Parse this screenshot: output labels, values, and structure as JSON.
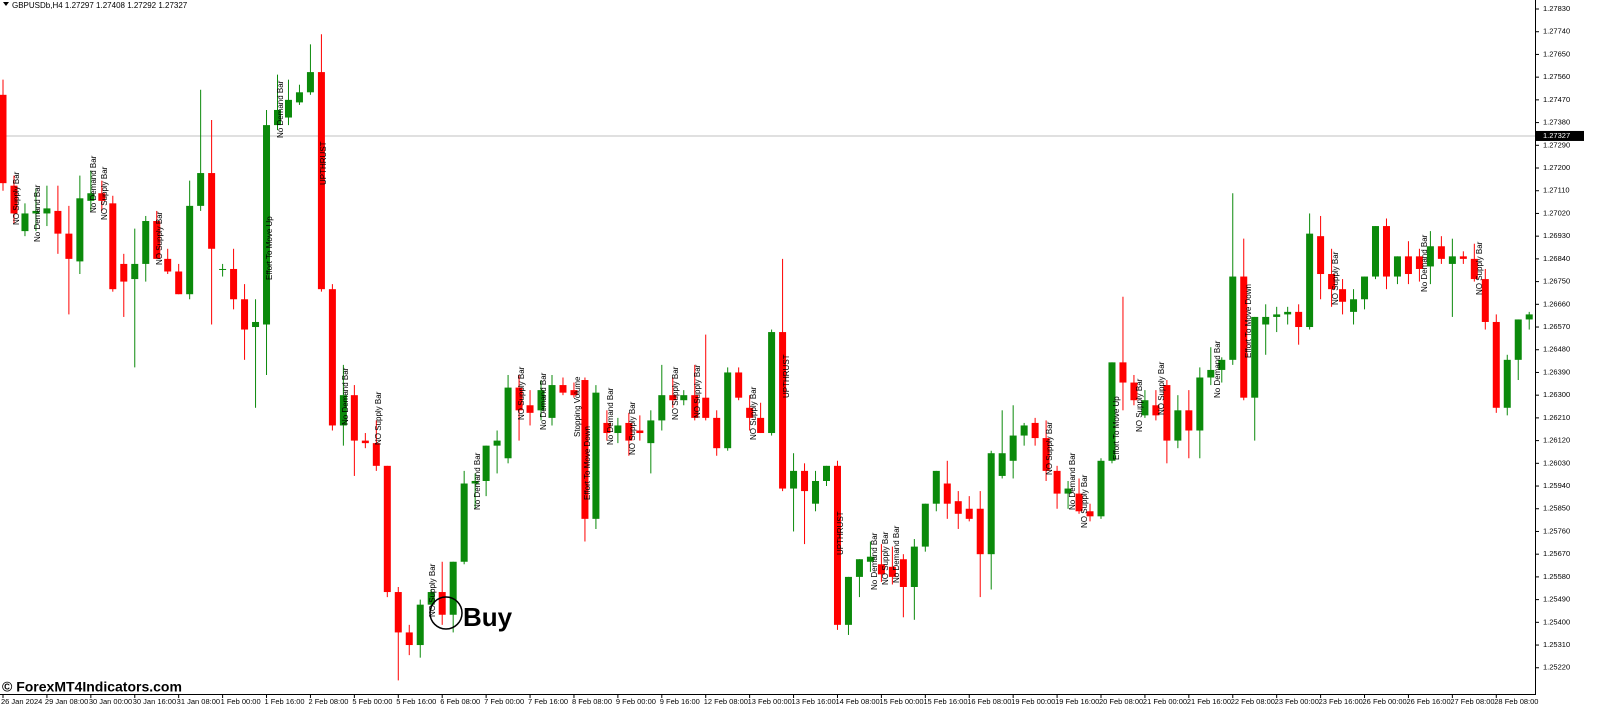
{
  "chart_data": {
    "type": "candlestick",
    "title": "GBPUSDb,H4  1.27297 1.27408 1.27292 1.27327",
    "up_color": "#0b8a0b",
    "down_color": "#ff0000",
    "categories": [
      "26 Jan 2024",
      null,
      null,
      null,
      "29 Jan 08:00",
      null,
      null,
      null,
      "30 Jan 00:00",
      null,
      null,
      null,
      "30 Jan 16:00",
      null,
      null,
      null,
      "31 Jan 08:00",
      null,
      null,
      null,
      "1 Feb 00:00",
      null,
      null,
      null,
      "1 Feb 16:00",
      null,
      null,
      null,
      "2 Feb 08:00",
      null,
      null,
      null,
      "5 Feb 00:00",
      null,
      null,
      null,
      "5 Feb 16:00",
      null,
      null,
      null,
      "6 Feb 08:00",
      null,
      null,
      null,
      "7 Feb 00:00",
      null,
      null,
      null,
      "7 Feb 16:00",
      null,
      null,
      null,
      "8 Feb 08:00",
      null,
      null,
      null,
      "9 Feb 00:00",
      null,
      null,
      null,
      "9 Feb 16:00",
      null,
      null,
      null,
      "12 Feb 08:00",
      null,
      null,
      null,
      "13 Feb 00:00",
      null,
      null,
      null,
      "13 Feb 16:00",
      null,
      null,
      null,
      "14 Feb 08:00",
      null,
      null,
      null,
      "15 Feb 00:00",
      null,
      null,
      null,
      "15 Feb 16:00",
      null,
      null,
      null,
      "16 Feb 08:00",
      null,
      null,
      null,
      "19 Feb 00:00",
      null,
      null,
      null,
      "19 Feb 16:00",
      null,
      null,
      null,
      "20 Feb 08:00",
      null,
      null,
      null,
      "21 Feb 00:00",
      null,
      null,
      null,
      "21 Feb 16:00",
      null,
      null,
      null,
      "22 Feb 08:00",
      null,
      null,
      null,
      "23 Feb 00:00",
      null,
      null,
      null,
      "23 Feb 16:00",
      null,
      null,
      null,
      "26 Feb 00:00",
      null,
      null,
      null,
      "26 Feb 16:00",
      null,
      null,
      null,
      "27 Feb 08:00",
      null,
      null,
      null,
      "28 Feb 08:00",
      null,
      null,
      null
    ],
    "open": [
      1.2749,
      1.2713,
      1.2695,
      1.2702,
      1.2702,
      1.2703,
      1.2694,
      1.2683,
      1.2707,
      1.271,
      1.2706,
      1.2682,
      1.2676,
      1.2682,
      1.2699,
      1.2684,
      1.2679,
      1.267,
      1.2705,
      1.2718,
      1.268,
      1.268,
      1.2668,
      1.2657,
      1.2658,
      1.2737,
      1.274,
      1.2746,
      1.275,
      1.2758,
      1.2672,
      1.2618,
      1.263,
      1.2612,
      1.2611,
      1.2602,
      1.2552,
      1.2536,
      1.2531,
      1.2547,
      1.2552,
      1.2543,
      1.2564,
      1.2595,
      1.2596,
      1.261,
      1.2605,
      1.2633,
      1.2626,
      1.2624,
      1.2621,
      1.2634,
      1.2632,
      1.2636,
      1.2581,
      1.2619,
      1.2615,
      1.2619,
      1.2616,
      1.2611,
      1.262,
      1.263,
      1.2628,
      1.263,
      1.2629,
      1.2621,
      1.2609,
      1.2639,
      1.2625,
      1.2621,
      1.2615,
      1.2655,
      1.2593,
      1.26,
      1.2587,
      1.2596,
      1.2602,
      1.2539,
      1.2558,
      1.2564,
      1.2563,
      1.2562,
      1.2565,
      1.2554,
      1.257,
      1.2587,
      1.2595,
      1.2588,
      1.2585,
      1.2585,
      1.2567,
      1.2598,
      1.2604,
      1.2614,
      1.2619,
      1.2613,
      1.26,
      1.2591,
      1.2591,
      1.2584,
      1.2582,
      1.2604,
      1.2643,
      1.2635,
      1.2622,
      1.2626,
      1.2634,
      1.2612,
      1.2624,
      1.2616,
      1.2637,
      1.264,
      1.2644,
      1.2677,
      1.2629,
      1.2658,
      1.2661,
      1.2662,
      1.2663,
      1.2657,
      1.2693,
      1.2678,
      1.2672,
      1.2663,
      1.2668,
      1.2677,
      1.2697,
      1.2677,
      1.2685,
      1.2685,
      1.2681,
      1.2689,
      1.2682,
      1.2685,
      1.2684,
      1.2676,
      1.2659,
      1.2625,
      1.2644,
      1.266
    ],
    "high": [
      1.2755,
      1.2717,
      1.2706,
      1.2712,
      1.2713,
      1.2713,
      1.2705,
      1.2717,
      1.2719,
      1.2715,
      1.2709,
      1.2686,
      1.2696,
      1.2701,
      1.2703,
      1.2688,
      1.2682,
      1.2715,
      1.2751,
      1.2739,
      1.2682,
      1.2688,
      1.2674,
      1.2668,
      1.2743,
      1.2757,
      1.2755,
      1.2753,
      1.2769,
      1.2773,
      1.2674,
      1.2642,
      1.2634,
      1.2615,
      1.262,
      1.2602,
      1.2554,
      1.2539,
      1.2549,
      1.2553,
      1.2564,
      1.2564,
      1.26,
      1.2599,
      1.261,
      1.2616,
      1.2638,
      1.2638,
      1.2632,
      1.2636,
      1.2638,
      1.2637,
      1.2635,
      1.2637,
      1.2634,
      1.2624,
      1.2621,
      1.2623,
      1.2622,
      1.2624,
      1.2642,
      1.2637,
      1.2632,
      1.2642,
      1.2654,
      1.2624,
      1.2641,
      1.2641,
      1.263,
      1.2627,
      1.2656,
      1.2684,
      1.2607,
      1.2603,
      1.26,
      1.2602,
      1.2604,
      1.2558,
      1.2565,
      1.2572,
      1.2571,
      1.257,
      1.2567,
      1.2573,
      1.2587,
      1.26,
      1.2604,
      1.2592,
      1.259,
      1.2592,
      1.2608,
      1.2624,
      1.2626,
      1.2619,
      1.2621,
      1.262,
      1.2602,
      1.2596,
      1.2597,
      1.2587,
      1.2605,
      1.2643,
      1.2669,
      1.2638,
      1.2632,
      1.2632,
      1.2636,
      1.263,
      1.2632,
      1.2641,
      1.2649,
      1.2645,
      1.271,
      1.2692,
      1.2661,
      1.2666,
      1.2665,
      1.2665,
      1.2666,
      1.2702,
      1.2701,
      1.2688,
      1.2676,
      1.2672,
      1.2677,
      1.2697,
      1.27,
      1.2685,
      1.2691,
      1.2688,
      1.2695,
      1.2693,
      1.2692,
      1.2687,
      1.269,
      1.268,
      1.2662,
      1.2646,
      1.266,
      1.2663
    ],
    "low": [
      1.2711,
      1.2698,
      1.2693,
      1.2695,
      1.2697,
      1.2686,
      1.2662,
      1.2678,
      1.2703,
      1.2703,
      1.2671,
      1.2661,
      1.2641,
      1.2675,
      1.2684,
      1.2678,
      1.267,
      1.2668,
      1.2703,
      1.2658,
      1.2677,
      1.2664,
      1.2644,
      1.2625,
      1.2638,
      1.2735,
      1.2737,
      1.2745,
      1.2749,
      1.2671,
      1.2616,
      1.261,
      1.2598,
      1.2609,
      1.26,
      1.255,
      1.2517,
      1.2527,
      1.2526,
      1.2545,
      1.2539,
      1.2536,
      1.2563,
      1.2585,
      1.259,
      1.2599,
      1.2603,
      1.2612,
      1.2618,
      1.262,
      1.2618,
      1.263,
      1.2629,
      1.2572,
      1.2577,
      1.2612,
      1.2611,
      1.2606,
      1.2612,
      1.2599,
      1.2616,
      1.2625,
      1.2626,
      1.262,
      1.262,
      1.2606,
      1.2608,
      1.2628,
      1.2616,
      1.2615,
      1.2614,
      1.2592,
      1.2576,
      1.2571,
      1.2584,
      1.2594,
      1.2537,
      1.2535,
      1.255,
      1.256,
      1.2556,
      1.2555,
      1.2542,
      1.2541,
      1.2568,
      1.2584,
      1.2581,
      1.2577,
      1.258,
      1.255,
      1.2553,
      1.2597,
      1.2597,
      1.261,
      1.261,
      1.2596,
      1.2585,
      1.2585,
      1.2583,
      1.258,
      1.2581,
      1.2603,
      1.2624,
      1.2626,
      1.2621,
      1.262,
      1.2603,
      1.2609,
      1.2605,
      1.2605,
      1.2634,
      1.2635,
      1.2642,
      1.2628,
      1.2612,
      1.2646,
      1.2655,
      1.2658,
      1.265,
      1.2656,
      1.2668,
      1.2665,
      1.2662,
      1.2658,
      1.2664,
      1.2676,
      1.2672,
      1.2674,
      1.2674,
      1.2675,
      1.2674,
      1.2682,
      1.2661,
      1.2682,
      1.2675,
      1.2656,
      1.2623,
      1.2622,
      1.2636,
      1.2656
    ],
    "close": [
      1.2714,
      1.2702,
      1.2702,
      1.2703,
      1.2704,
      1.2694,
      1.2684,
      1.2708,
      1.271,
      1.2707,
      1.2672,
      1.2675,
      1.2682,
      1.2699,
      1.2684,
      1.2679,
      1.267,
      1.2705,
      1.2718,
      1.2688,
      1.268,
      1.2668,
      1.2656,
      1.2659,
      1.2737,
      1.2743,
      1.2747,
      1.275,
      1.2758,
      1.2672,
      1.2618,
      1.263,
      1.2612,
      1.2611,
      1.2602,
      1.2552,
      1.2536,
      1.2531,
      1.2547,
      1.2552,
      1.2543,
      1.2564,
      1.2595,
      1.2596,
      1.261,
      1.2612,
      1.2633,
      1.2624,
      1.2623,
      1.2632,
      1.2634,
      1.2631,
      1.263,
      1.2581,
      1.2631,
      1.2615,
      1.2618,
      1.2612,
      1.2615,
      1.262,
      1.263,
      1.2628,
      1.263,
      1.2621,
      1.2621,
      1.2609,
      1.2639,
      1.2629,
      1.2621,
      1.2615,
      1.2655,
      1.2593,
      1.26,
      1.2592,
      1.2596,
      1.2602,
      1.2539,
      1.2558,
      1.2565,
      1.2566,
      1.2559,
      1.2558,
      1.2554,
      1.257,
      1.2587,
      1.26,
      1.2587,
      1.2583,
      1.2581,
      1.2567,
      1.2607,
      1.2607,
      1.2614,
      1.2618,
      1.2613,
      1.26,
      1.2591,
      1.2593,
      1.2584,
      1.2582,
      1.2604,
      1.2643,
      1.2635,
      1.2628,
      1.2628,
      1.2622,
      1.2612,
      1.2624,
      1.2616,
      1.2637,
      1.264,
      1.2644,
      1.2677,
      1.2629,
      1.2661,
      1.2661,
      1.2662,
      1.2663,
      1.2657,
      1.2694,
      1.2678,
      1.2672,
      1.2667,
      1.2668,
      1.2677,
      1.2697,
      1.2677,
      1.2685,
      1.2678,
      1.268,
      1.2689,
      1.2684,
      1.2685,
      1.2684,
      1.2676,
      1.2659,
      1.2625,
      1.2644,
      1.266,
      1.2662
    ],
    "ylim": [
      1.2512,
      1.2783
    ],
    "yticks": [
      {
        "value": 1.2522,
        "label": "1.25220"
      },
      {
        "value": 1.2531,
        "label": "1.25310"
      },
      {
        "value": 1.254,
        "label": "1.25400"
      },
      {
        "value": 1.2549,
        "label": "1.25490"
      },
      {
        "value": 1.2558,
        "label": "1.25580"
      },
      {
        "value": 1.2567,
        "label": "1.25670"
      },
      {
        "value": 1.2576,
        "label": "1.25760"
      },
      {
        "value": 1.2585,
        "label": "1.25850"
      },
      {
        "value": 1.2594,
        "label": "1.25940"
      },
      {
        "value": 1.2603,
        "label": "1.26030"
      },
      {
        "value": 1.2612,
        "label": "1.26120"
      },
      {
        "value": 1.2621,
        "label": "1.26210"
      },
      {
        "value": 1.263,
        "label": "1.26300"
      },
      {
        "value": 1.2639,
        "label": "1.26390"
      },
      {
        "value": 1.2648,
        "label": "1.26480"
      },
      {
        "value": 1.2657,
        "label": "1.26570"
      },
      {
        "value": 1.2666,
        "label": "1.26660"
      },
      {
        "value": 1.2675,
        "label": "1.26750"
      },
      {
        "value": 1.2684,
        "label": "1.26840"
      },
      {
        "value": 1.2693,
        "label": "1.26930"
      },
      {
        "value": 1.2702,
        "label": "1.27020"
      },
      {
        "value": 1.2711,
        "label": "1.27110"
      },
      {
        "value": 1.272,
        "label": "1.27200"
      },
      {
        "value": 1.2729,
        "label": "1.27290"
      },
      {
        "value": 1.2738,
        "label": "1.27380"
      },
      {
        "value": 1.2747,
        "label": "1.27470"
      },
      {
        "value": 1.2756,
        "label": "1.27560"
      },
      {
        "value": 1.2765,
        "label": "1.27650"
      },
      {
        "value": 1.2774,
        "label": "1.27740"
      },
      {
        "value": 1.2783,
        "label": "1.27830"
      }
    ],
    "current_price": {
      "value": 1.27327,
      "label": "1.27327"
    },
    "annotations": [
      "NO Supply Bar",
      "No Demand Bar",
      "No Demand Bar",
      "NO Supply Bar",
      "NO Supply Bar",
      "Effort To Move Up",
      "No Demand Bar",
      "UPTHRUST",
      "No Demand Bar",
      "NO Supply Bar",
      "NO Supply Bar",
      "No Demand Bar",
      "NO Supply Bar",
      "No Demand Bar",
      "Stopping Volume",
      "Effort To Move Down",
      "No Demand Bar",
      "NO Supply Bar",
      "NO Supply Bar",
      "NO Supply Bar",
      "NO Supply Bar",
      "UPTHRUST",
      "UPTHRUST",
      "No Demand Bar",
      "NO Supply Bar",
      "No Demand Bar",
      "NO Supply Bar",
      "No Demand Bar",
      "NO Supply Bar",
      "Effort To Move Up",
      "NO Supply Bar",
      "NO Supply Bar",
      "No Demand Bar",
      "Effort To Move Down",
      "NO Supply Bar",
      "No Demand Bar",
      "NO Supply Bar"
    ],
    "signal": "Buy",
    "watermark": "© ForexMT4Indicators.com"
  }
}
